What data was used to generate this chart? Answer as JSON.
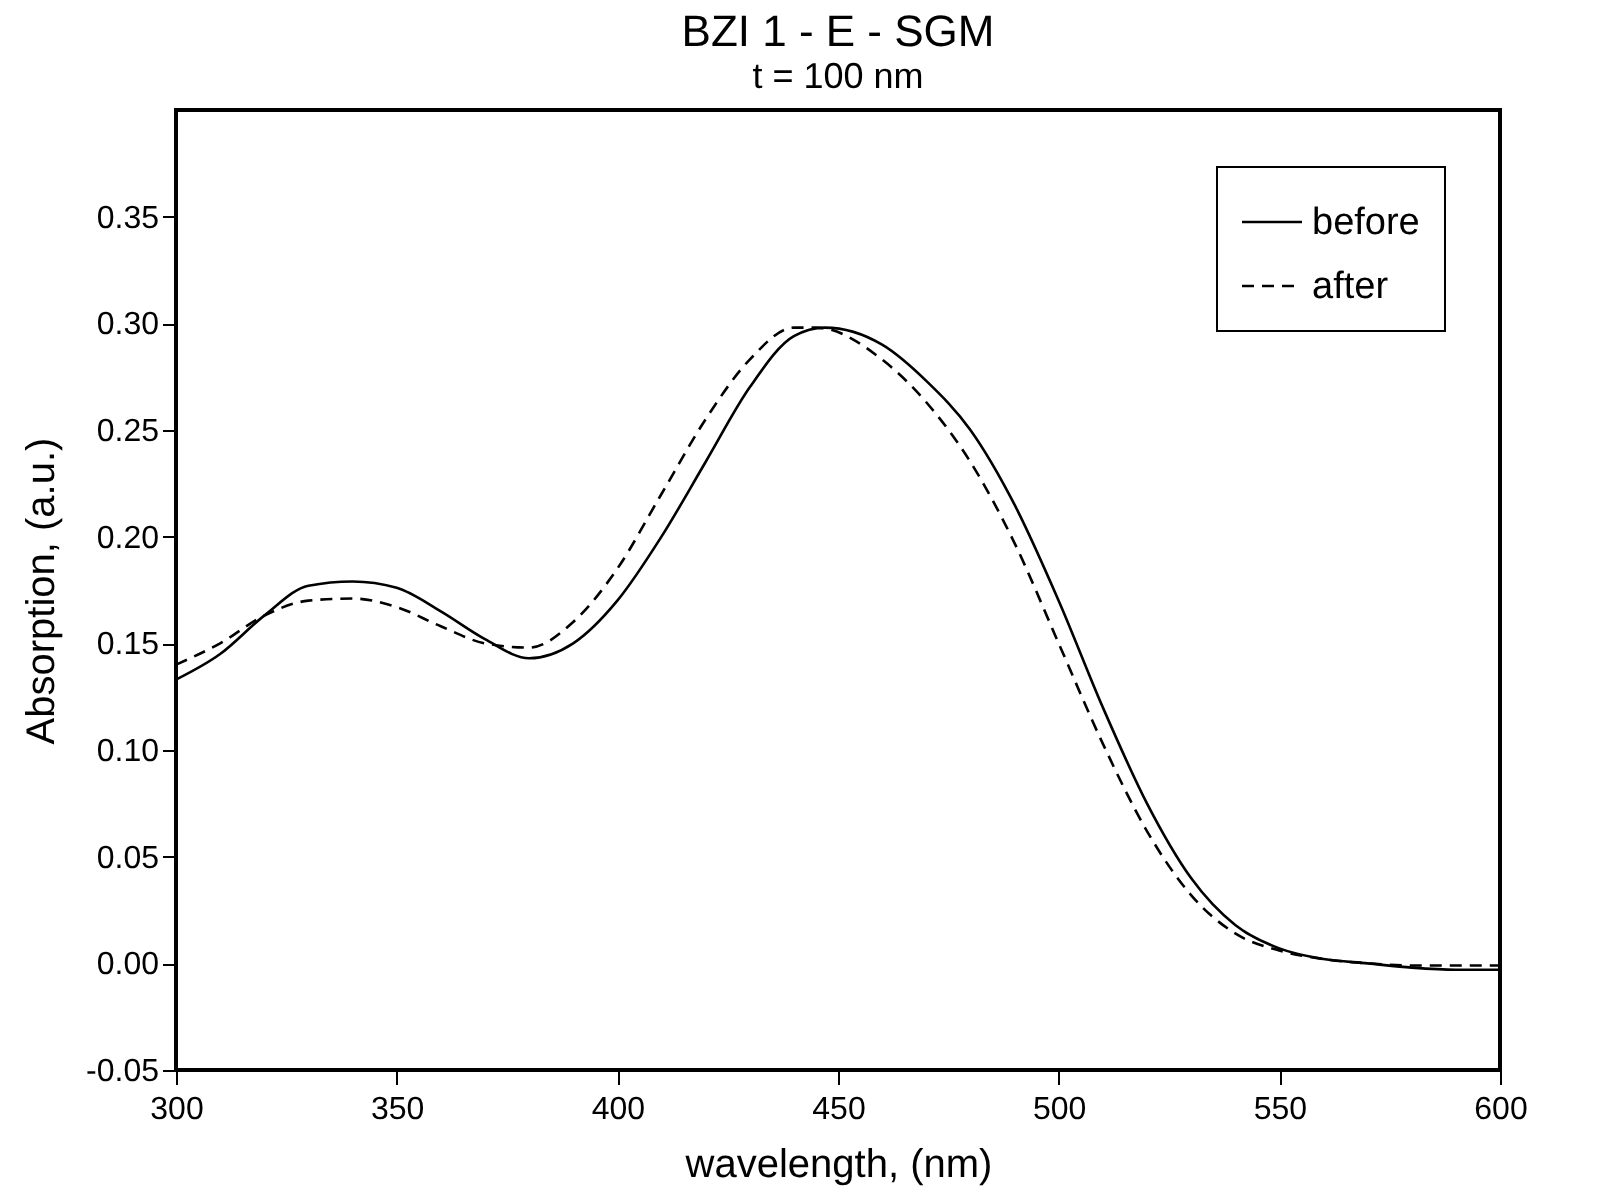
{
  "chart_data": {
    "type": "line",
    "title": "BZI 1 - E - SGM",
    "subtitle": "t = 100 nm",
    "xlabel": "wavelength, (nm)",
    "ylabel": "Absorption, (a.u.)",
    "xlim": [
      300,
      600
    ],
    "xticks": [
      300,
      350,
      400,
      450,
      500,
      550,
      600
    ],
    "ylim": [
      -0.05,
      0.4
    ],
    "yticks": [
      -0.05,
      {
        "value": 0,
        "label": "0.00"
      },
      0.05,
      {
        "value": 0.1,
        "label": "0.10"
      },
      0.15,
      {
        "value": 0.2,
        "label": "0.20"
      },
      0.25,
      {
        "value": 0.3,
        "label": "0.30"
      },
      0.35
    ],
    "grid": false,
    "legend": "top right",
    "marker": "none",
    "series": [
      {
        "name": "before",
        "color": "#000000",
        "line_style": "solid",
        "x": [
          300,
          310,
          320,
          330,
          340,
          350,
          360,
          370,
          380,
          390,
          400,
          410,
          420,
          430,
          440,
          447,
          460,
          470,
          480,
          490,
          500,
          510,
          520,
          530,
          540,
          550,
          560,
          570,
          580,
          590,
          600
        ],
        "values": [
          0.133,
          0.145,
          0.163,
          0.177,
          0.179,
          0.176,
          0.165,
          0.152,
          0.143,
          0.15,
          0.17,
          0.2,
          0.235,
          0.27,
          0.294,
          0.298,
          0.29,
          0.273,
          0.25,
          0.215,
          0.17,
          0.12,
          0.075,
          0.04,
          0.018,
          0.007,
          0.002,
          0,
          -0.002,
          -0.003,
          -0.003
        ]
      },
      {
        "name": "after",
        "color": "#000000",
        "line_style": "dashed",
        "x": [
          300,
          310,
          320,
          330,
          340,
          350,
          360,
          370,
          380,
          390,
          400,
          410,
          420,
          430,
          440,
          445,
          460,
          470,
          480,
          490,
          500,
          510,
          520,
          530,
          540,
          550,
          560,
          570,
          580,
          590,
          600
        ],
        "values": [
          0.14,
          0.15,
          0.163,
          0.17,
          0.171,
          0.167,
          0.158,
          0.15,
          0.148,
          0.16,
          0.185,
          0.22,
          0.255,
          0.283,
          0.298,
          0.298,
          0.283,
          0.263,
          0.235,
          0.197,
          0.15,
          0.103,
          0.062,
          0.032,
          0.014,
          0.006,
          0.002,
          0,
          -0.001,
          -0.001,
          -0.001
        ]
      }
    ]
  }
}
